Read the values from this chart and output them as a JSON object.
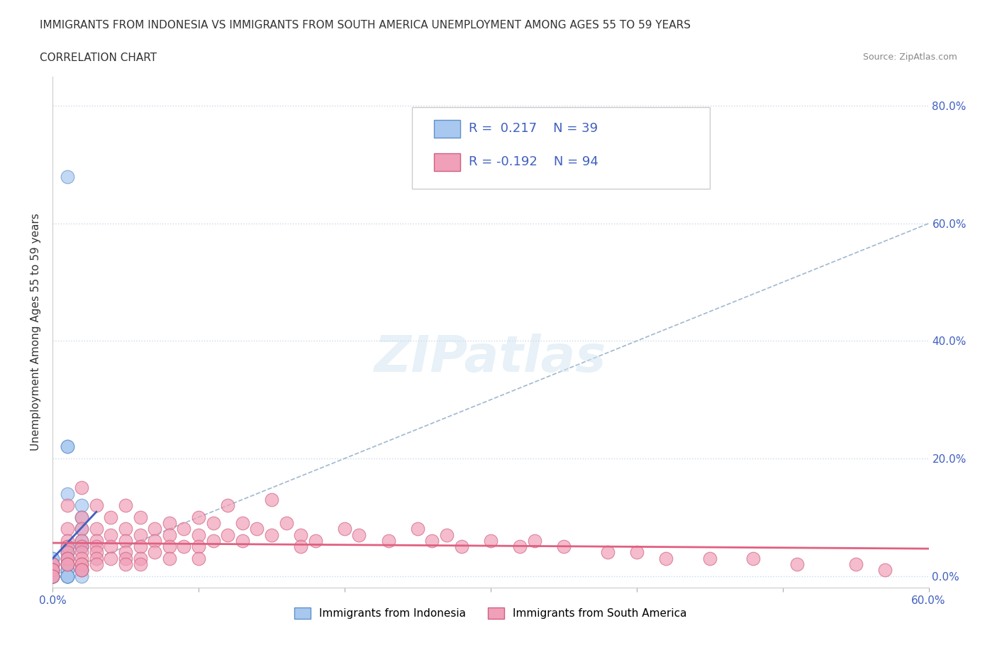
{
  "title_line1": "IMMIGRANTS FROM INDONESIA VS IMMIGRANTS FROM SOUTH AMERICA UNEMPLOYMENT AMONG AGES 55 TO 59 YEARS",
  "title_line2": "CORRELATION CHART",
  "source_text": "Source: ZipAtlas.com",
  "xlabel": "",
  "ylabel": "Unemployment Among Ages 55 to 59 years",
  "xlim": [
    0.0,
    0.6
  ],
  "ylim": [
    -0.02,
    0.85
  ],
  "xticks": [
    0.0,
    0.1,
    0.2,
    0.3,
    0.4,
    0.5,
    0.6
  ],
  "yticks_right": [
    0.0,
    0.2,
    0.4,
    0.6,
    0.8
  ],
  "ytick_labels_right": [
    "0.0%",
    "20.0%",
    "40.0%",
    "60.0%",
    "80.0%"
  ],
  "xtick_labels": [
    "0.0%",
    "",
    "",
    "",
    "",
    "",
    "60.0%"
  ],
  "grid_color": "#c8d8e8",
  "background_color": "#ffffff",
  "watermark": "ZIPatlas",
  "indonesia_color": "#a8c8f0",
  "indonesia_edge_color": "#6090c8",
  "south_america_color": "#f0a0b8",
  "south_america_edge_color": "#d06080",
  "indonesia_R": 0.217,
  "indonesia_N": 39,
  "south_america_R": -0.192,
  "south_america_N": 94,
  "trend_color_indonesia": "#4060c0",
  "trend_color_south_america": "#e06080",
  "ref_line_color": "#a0b8d0",
  "legend_label_indonesia": "Immigrants from Indonesia",
  "legend_label_south_america": "Immigrants from South America",
  "indonesia_x": [
    0.01,
    0.01,
    0.01,
    0.01,
    0.02,
    0.02,
    0.02,
    0.02,
    0.02,
    0.02,
    0.01,
    0.01,
    0.01,
    0.01,
    0.0,
    0.0,
    0.0,
    0.0,
    0.01,
    0.01,
    0.01,
    0.01,
    0.0,
    0.0,
    0.02,
    0.02,
    0.0,
    0.0,
    0.01,
    0.01,
    0.01,
    0.0,
    0.0,
    0.0,
    0.01,
    0.02,
    0.01,
    0.0,
    0.0
  ],
  "indonesia_y": [
    0.68,
    0.22,
    0.22,
    0.14,
    0.12,
    0.1,
    0.08,
    0.06,
    0.05,
    0.05,
    0.05,
    0.04,
    0.04,
    0.03,
    0.03,
    0.03,
    0.02,
    0.02,
    0.02,
    0.02,
    0.01,
    0.01,
    0.01,
    0.01,
    0.01,
    0.01,
    0.0,
    0.0,
    0.0,
    0.0,
    0.0,
    0.0,
    0.0,
    0.0,
    0.0,
    0.0,
    0.0,
    0.0,
    0.0
  ],
  "south_america_x": [
    0.0,
    0.0,
    0.0,
    0.0,
    0.0,
    0.0,
    0.0,
    0.01,
    0.01,
    0.01,
    0.01,
    0.01,
    0.01,
    0.01,
    0.01,
    0.01,
    0.02,
    0.02,
    0.02,
    0.02,
    0.02,
    0.02,
    0.02,
    0.02,
    0.02,
    0.02,
    0.02,
    0.03,
    0.03,
    0.03,
    0.03,
    0.03,
    0.03,
    0.03,
    0.04,
    0.04,
    0.04,
    0.04,
    0.05,
    0.05,
    0.05,
    0.05,
    0.05,
    0.05,
    0.06,
    0.06,
    0.06,
    0.06,
    0.06,
    0.07,
    0.07,
    0.07,
    0.08,
    0.08,
    0.08,
    0.08,
    0.09,
    0.09,
    0.1,
    0.1,
    0.1,
    0.1,
    0.11,
    0.11,
    0.12,
    0.12,
    0.13,
    0.13,
    0.14,
    0.15,
    0.15,
    0.16,
    0.17,
    0.17,
    0.18,
    0.2,
    0.21,
    0.23,
    0.25,
    0.26,
    0.27,
    0.28,
    0.3,
    0.32,
    0.33,
    0.35,
    0.38,
    0.4,
    0.42,
    0.45,
    0.48,
    0.51,
    0.55,
    0.57
  ],
  "south_america_y": [
    0.02,
    0.02,
    0.01,
    0.01,
    0.01,
    0.0,
    0.0,
    0.12,
    0.08,
    0.06,
    0.05,
    0.04,
    0.03,
    0.03,
    0.02,
    0.02,
    0.15,
    0.1,
    0.08,
    0.06,
    0.05,
    0.04,
    0.03,
    0.02,
    0.02,
    0.01,
    0.01,
    0.12,
    0.08,
    0.06,
    0.05,
    0.04,
    0.03,
    0.02,
    0.1,
    0.07,
    0.05,
    0.03,
    0.12,
    0.08,
    0.06,
    0.04,
    0.03,
    0.02,
    0.1,
    0.07,
    0.05,
    0.03,
    0.02,
    0.08,
    0.06,
    0.04,
    0.09,
    0.07,
    0.05,
    0.03,
    0.08,
    0.05,
    0.1,
    0.07,
    0.05,
    0.03,
    0.09,
    0.06,
    0.12,
    0.07,
    0.09,
    0.06,
    0.08,
    0.13,
    0.07,
    0.09,
    0.07,
    0.05,
    0.06,
    0.08,
    0.07,
    0.06,
    0.08,
    0.06,
    0.07,
    0.05,
    0.06,
    0.05,
    0.06,
    0.05,
    0.04,
    0.04,
    0.03,
    0.03,
    0.03,
    0.02,
    0.02,
    0.01
  ]
}
